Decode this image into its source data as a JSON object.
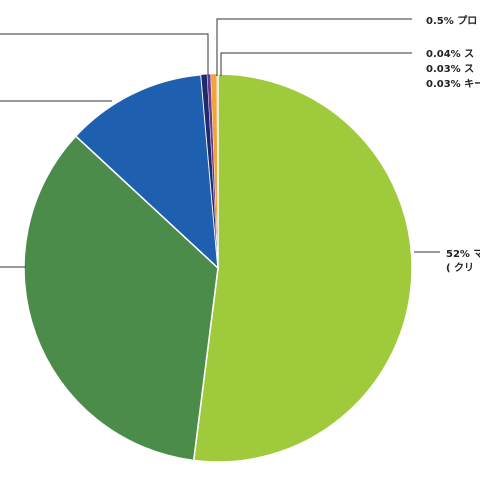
{
  "chart_data": {
    "type": "pie",
    "start_angle_deg": 0,
    "direction": "clockwise",
    "colors": {
      "slice_mac": "#9FCA3B",
      "slice_windows": "#4C8C4A",
      "slice_linux": "#1F5FB0",
      "slice_navy": "#1F2A6B",
      "slice_purple": "#6B3A8C",
      "slice_red": "#D9362B",
      "slice_orange": "#F2A33A",
      "border": "#ffffff",
      "leader": "#333333",
      "label_text": "#222222"
    },
    "slices": [
      {
        "key": "slice_mac",
        "value": 52,
        "label_lines": [
          "52% マ",
          "( クリ"
        ]
      },
      {
        "key": "slice_windows",
        "value": 34.9
      },
      {
        "key": "slice_linux",
        "value": 11.7
      },
      {
        "key": "slice_navy",
        "value": 0.5
      },
      {
        "key": "slice_purple",
        "value": 0.3
      },
      {
        "key": "slice_orange",
        "value": 0.5,
        "label_lines": [
          "0.5% プロ"
        ]
      },
      {
        "key": "slice_red",
        "value": 0.04,
        "label_lines": [
          "0.04% ス"
        ]
      },
      {
        "key": "slice_red",
        "value": 0.03,
        "label_lines": [
          "0.03% ス"
        ]
      },
      {
        "key": "slice_red",
        "value": 0.03,
        "label_lines": [
          "0.03% キー"
        ]
      }
    ]
  }
}
